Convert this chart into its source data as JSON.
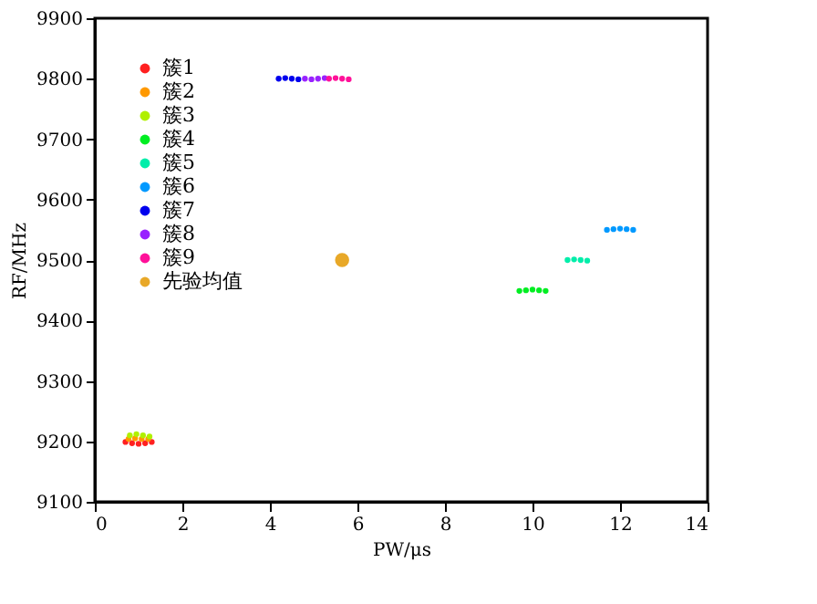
{
  "chart_data": {
    "type": "scatter",
    "xlabel": "PW/μs",
    "ylabel": "RF/MHz",
    "xlim": [
      0,
      14
    ],
    "xticks": [
      0,
      2,
      4,
      6,
      8,
      10,
      12,
      14
    ],
    "ylim": [
      9100,
      9900
    ],
    "yticks": [
      9100,
      9200,
      9300,
      9400,
      9500,
      9600,
      9700,
      9800,
      9900
    ],
    "grid": false,
    "legend": "top left",
    "marker": "circle",
    "series": [
      {
        "name": "簇1",
        "color": "#ff2020",
        "x": [
          0.7,
          0.85,
          1.0,
          1.15,
          1.3
        ],
        "values": [
          9199,
          9197,
          9196,
          9197,
          9199
        ]
      },
      {
        "name": "簇2",
        "color": "#ff9900",
        "x": [
          0.77,
          0.92,
          1.07,
          1.22
        ],
        "values": [
          9204,
          9205,
          9204,
          9204
        ]
      },
      {
        "name": "簇3",
        "color": "#b0f000",
        "x": [
          0.8,
          0.95,
          1.1,
          1.25
        ],
        "values": [
          9210,
          9212,
          9210,
          9208
        ]
      },
      {
        "name": "簇4",
        "color": "#00ee22",
        "x": [
          9.7,
          9.85,
          10.0,
          10.15,
          10.3
        ],
        "values": [
          9449,
          9450,
          9451,
          9450,
          9449
        ]
      },
      {
        "name": "簇5",
        "color": "#00eeaa",
        "x": [
          10.8,
          10.95,
          11.1,
          11.25
        ],
        "values": [
          9500,
          9501,
          9500,
          9499
        ]
      },
      {
        "name": "簇6",
        "color": "#0099ff",
        "x": [
          11.7,
          11.85,
          12.0,
          12.15,
          12.3
        ],
        "values": [
          9550,
          9551,
          9552,
          9551,
          9550
        ]
      },
      {
        "name": "簇7",
        "color": "#0000ee",
        "x": [
          4.2,
          4.35,
          4.5,
          4.65
        ],
        "values": [
          9800,
          9801,
          9800,
          9799
        ]
      },
      {
        "name": "簇8",
        "color": "#9922ff",
        "x": [
          4.8,
          4.95,
          5.1,
          5.25
        ],
        "values": [
          9800,
          9799,
          9800,
          9801
        ]
      },
      {
        "name": "簇9",
        "color": "#ff1199",
        "x": [
          5.35,
          5.5,
          5.65,
          5.8
        ],
        "values": [
          9800,
          9801,
          9800,
          9799
        ]
      },
      {
        "name": "先验均值",
        "color": "#e8a828",
        "x": [
          5.65
        ],
        "values": [
          9500
        ]
      }
    ]
  }
}
